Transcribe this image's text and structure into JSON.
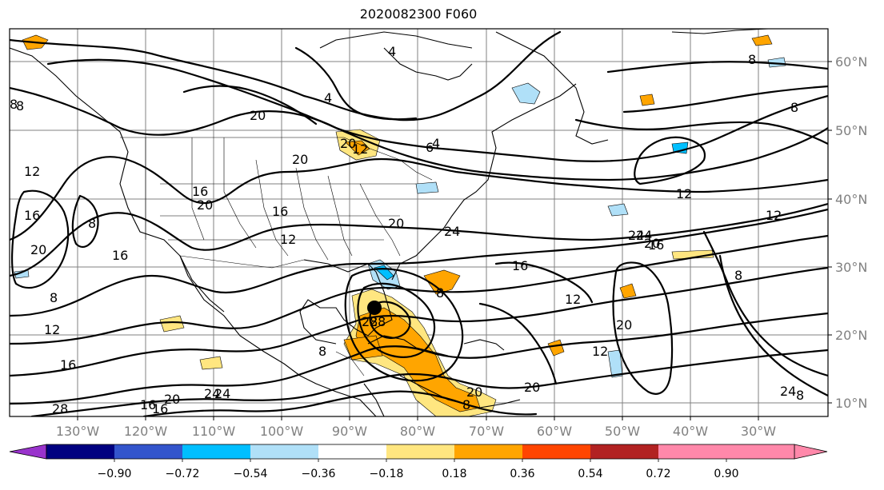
{
  "title": "2020082300 F060",
  "map": {
    "lon_labels": [
      "130°W",
      "120°W",
      "110°W",
      "100°W",
      "90°W",
      "80°W",
      "70°W",
      "60°W",
      "50°W",
      "40°W",
      "30°W"
    ],
    "lat_labels": [
      "60°N",
      "50°N",
      "40°N",
      "30°N",
      "20°N",
      "10°N"
    ],
    "contour_labels": [
      "8",
      "4",
      "20",
      "4",
      "12",
      "20",
      "20",
      "12",
      "16",
      "8",
      "16",
      "20",
      "12",
      "16",
      "20",
      "24",
      "8",
      "8",
      "12",
      "16",
      "28",
      "20",
      "16",
      "28",
      "20",
      "24",
      "20",
      "12",
      "16",
      "24",
      "12",
      "8",
      "12",
      "8",
      "20",
      "24",
      "16",
      "8",
      "12",
      "6",
      "20",
      "8",
      "16",
      "8",
      "16",
      "4",
      "24",
      "8",
      "20",
      "24",
      "28",
      "8"
    ],
    "storm_marker": "hurricane-center"
  },
  "colorbar": {
    "ticks": [
      "−0.90",
      "−0.72",
      "−0.54",
      "−0.36",
      "−0.18",
      "0.18",
      "0.36",
      "0.54",
      "0.72",
      "0.90"
    ],
    "colors": [
      "#9933cc",
      "#000080",
      "#3355cc",
      "#00bfff",
      "#b0e0f8",
      "#ffffff",
      "#ffe680",
      "#ffa500",
      "#ff4500",
      "#b22222",
      "#ff88aa"
    ]
  }
}
